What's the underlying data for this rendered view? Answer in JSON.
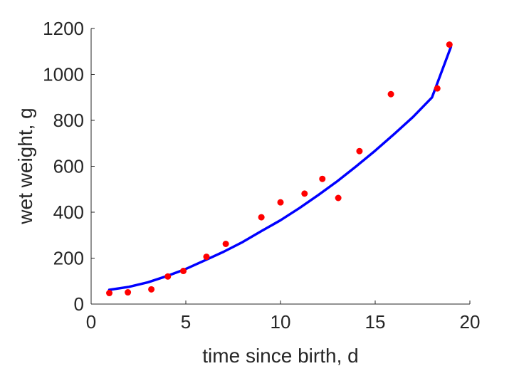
{
  "chart_data": {
    "type": "scatter",
    "title": "",
    "xlabel": "time since birth, d",
    "ylabel": "wet weight, g",
    "xlim": [
      0,
      20
    ],
    "ylim": [
      0,
      1200
    ],
    "xticks": [
      "0",
      "5",
      "10",
      "15",
      "20"
    ],
    "yticks": [
      "0",
      "200",
      "400",
      "600",
      "800",
      "1000",
      "1200"
    ],
    "grid": false,
    "legend": "none",
    "colors": {
      "points": "#ff0000",
      "fit": "#0000ff",
      "axes": "#262626"
    },
    "series": [
      {
        "kind": "points",
        "x": [
          0.96,
          1.94,
          3.18,
          4.05,
          4.87,
          6.09,
          7.11,
          8.99,
          10.0,
          11.27,
          12.21,
          13.05,
          14.17,
          15.83,
          18.28,
          18.92
        ],
        "y": [
          48,
          51,
          64,
          120,
          144,
          206,
          262,
          378,
          443,
          481,
          545,
          462,
          666,
          914,
          939,
          1130
        ]
      },
      {
        "kind": "fit-curve",
        "x": [
          0.96,
          2,
          3,
          4,
          5,
          6,
          7,
          8,
          9,
          10,
          11,
          12,
          13,
          14,
          15,
          16,
          17,
          18,
          19
        ],
        "y": [
          62,
          75,
          95,
          122,
          153,
          190,
          228,
          270,
          318,
          365,
          418,
          475,
          535,
          600,
          668,
          740,
          815,
          900,
          1120
        ]
      }
    ]
  }
}
